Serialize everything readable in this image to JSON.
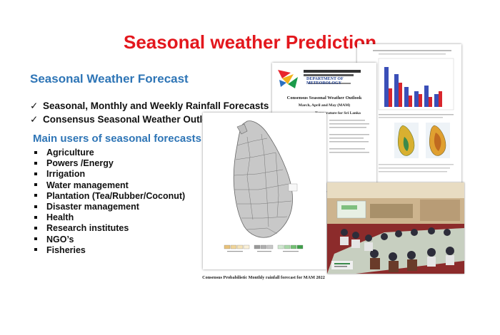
{
  "title": "Seasonal weather Prediction",
  "section_title": "Seasonal Weather Forecast",
  "check_items": [
    "Seasonal, Monthly and Weekly Rainfall Forecasts",
    "Consensus Seasonal Weather Outlook"
  ],
  "users_title": "Main users of seasonal forecasts",
  "users": [
    "Agriculture",
    "Powers /Energy",
    "Irrigation",
    "Water management",
    "Plantation (Tea/Rubber/Coconut)",
    "Disaster management",
    "Health",
    "Research institutes",
    "NGO’s",
    "Fisheries"
  ],
  "outlook_doc": {
    "department": "DEPARTMENT OF METEOROLOGY",
    "heading": "Consensus Seasonal Weather Outlook",
    "months": "March, April and May (MAM)",
    "subheading": "Temperature for Sri Lanka"
  },
  "map_caption": "Consensus Probabilistic Monthly rainfall forecast for MAM 2022",
  "colors": {
    "title": "#e3171d",
    "heading_blue": "#2e75b6",
    "text": "#111111"
  },
  "icons": [
    "checkmark-icon",
    "square-bullet-icon",
    "department-logo-icon"
  ]
}
